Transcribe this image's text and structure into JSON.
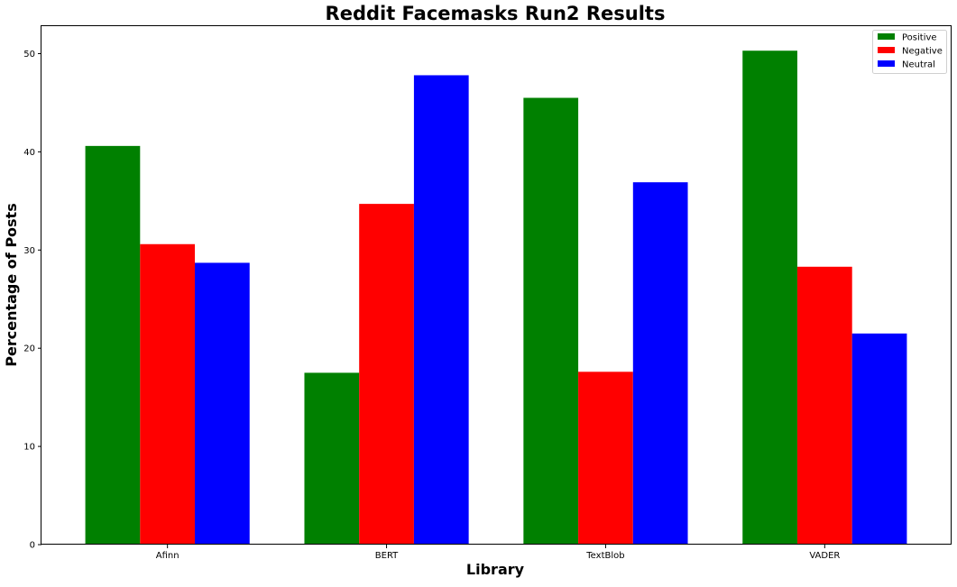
{
  "chart_data": {
    "type": "bar",
    "title": "Reddit Facemasks Run2 Results",
    "xlabel": "Library",
    "ylabel": "Percentage of Posts",
    "categories": [
      "Afinn",
      "BERT",
      "TextBlob",
      "VADER"
    ],
    "series": [
      {
        "name": "Positive",
        "color": "#008000",
        "values": [
          40.6,
          17.5,
          45.5,
          50.3
        ]
      },
      {
        "name": "Negative",
        "color": "#ff0000",
        "values": [
          30.6,
          34.7,
          17.6,
          28.3
        ]
      },
      {
        "name": "Neutral",
        "color": "#0000ff",
        "values": [
          28.7,
          47.8,
          36.9,
          21.5
        ]
      }
    ],
    "ylim": [
      0,
      52.8
    ],
    "yticks": [
      "0",
      "10",
      "20",
      "30",
      "40",
      "50"
    ],
    "grid": false,
    "legend_position": "top-right"
  }
}
